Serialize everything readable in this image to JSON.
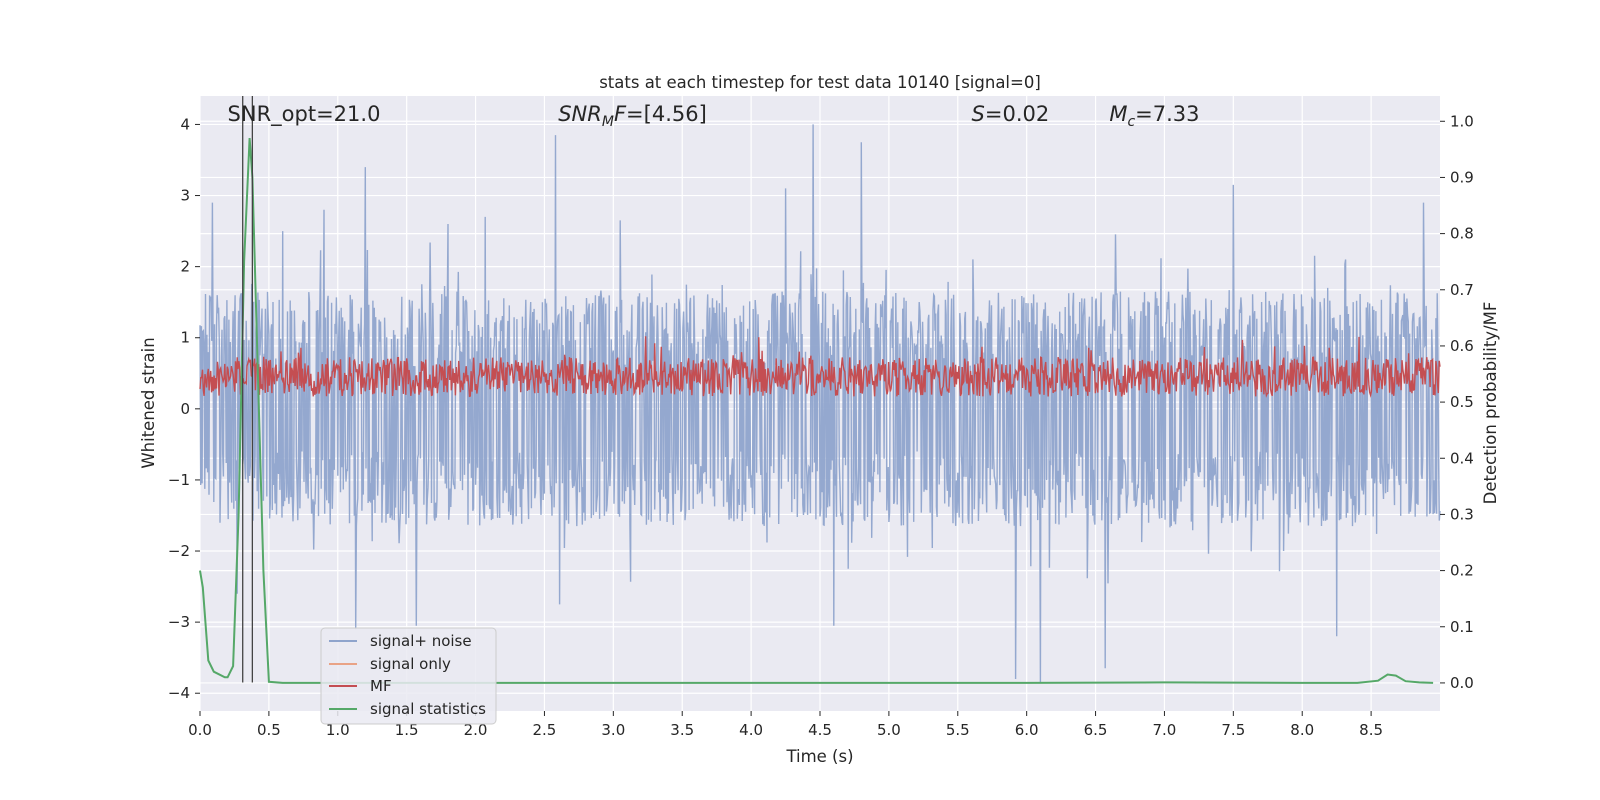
{
  "chart_data": {
    "type": "line",
    "title": "stats at each timestep for test data 10140 [signal=0]",
    "xlabel": "Time (s)",
    "ylabel": "Whitened strain",
    "ylabel_right": "Detection probability/MF",
    "xlim": [
      0.0,
      9.0
    ],
    "ylim": [
      -4.25,
      4.4
    ],
    "ylim_right": [
      -0.05,
      1.045
    ],
    "x_ticks": [
      0.0,
      0.5,
      1.0,
      1.5,
      2.0,
      2.5,
      3.0,
      3.5,
      4.0,
      4.5,
      5.0,
      5.5,
      6.0,
      6.5,
      7.0,
      7.5,
      8.0,
      8.5
    ],
    "x_tick_labels": [
      "0.0",
      "0.5",
      "1.0",
      "1.5",
      "2.0",
      "2.5",
      "3.0",
      "3.5",
      "4.0",
      "4.5",
      "5.0",
      "5.5",
      "6.0",
      "6.5",
      "7.0",
      "7.5",
      "8.0",
      "8.5"
    ],
    "y_ticks": [
      4,
      3,
      2,
      1,
      0,
      -1,
      -2,
      -3,
      -4
    ],
    "y_tick_labels": [
      "4",
      "3",
      "2",
      "1",
      "0",
      "−1",
      "−2",
      "−3",
      "−4"
    ],
    "y_right_ticks": [
      1.0,
      0.9,
      0.8,
      0.7,
      0.6,
      0.5,
      0.4,
      0.3,
      0.2,
      0.1,
      0.0
    ],
    "y_right_tick_labels": [
      "1.0",
      "0.9",
      "0.8",
      "0.7",
      "0.6",
      "0.5",
      "0.4",
      "0.3",
      "0.2",
      "0.1",
      "0.0"
    ],
    "grid": true,
    "annotations": [
      {
        "text": "SNR_opt=21.0",
        "x": 0.2,
        "y": 4.05
      },
      {
        "text": "=[4.56]",
        "x": 2.6,
        "y": 4.05,
        "math_base": "SNR",
        "math_sub": "M",
        "math_tail": "F"
      },
      {
        "text": "=0.02",
        "x": 5.6,
        "y": 4.05,
        "math_base": "S"
      },
      {
        "text": "=7.33",
        "x": 6.6,
        "y": 4.05,
        "math_base": "M",
        "math_sub": "c"
      }
    ],
    "vlines": [
      {
        "x": 0.31,
        "color": "#444444"
      },
      {
        "x": 0.38,
        "color": "#444444"
      }
    ],
    "series": [
      {
        "name": "signal+ noise",
        "axis": "left",
        "color": "#8fa4cc",
        "style": "dense noise, mostly within [-1.5, 1.6] with spikes",
        "spikes": [
          {
            "x": 0.09,
            "y": 2.9
          },
          {
            "x": 0.27,
            "y": -2.6
          },
          {
            "x": 0.6,
            "y": 2.5
          },
          {
            "x": 0.9,
            "y": 2.8
          },
          {
            "x": 1.2,
            "y": 3.4
          },
          {
            "x": 1.13,
            "y": -3.1
          },
          {
            "x": 1.57,
            "y": -3.05
          },
          {
            "x": 1.8,
            "y": 2.6
          },
          {
            "x": 2.07,
            "y": 2.7
          },
          {
            "x": 2.58,
            "y": 3.85
          },
          {
            "x": 2.61,
            "y": -2.75
          },
          {
            "x": 3.05,
            "y": 2.65
          },
          {
            "x": 4.25,
            "y": 3.1
          },
          {
            "x": 4.45,
            "y": 4.0
          },
          {
            "x": 4.6,
            "y": -3.05
          },
          {
            "x": 4.8,
            "y": 3.75
          },
          {
            "x": 5.92,
            "y": -3.8
          },
          {
            "x": 6.1,
            "y": -3.85
          },
          {
            "x": 6.57,
            "y": -3.65
          },
          {
            "x": 7.5,
            "y": 3.15
          },
          {
            "x": 8.25,
            "y": -3.2
          },
          {
            "x": 8.88,
            "y": 2.9
          }
        ]
      },
      {
        "name": "signal only",
        "axis": "left",
        "color": "#e9a386",
        "values": []
      },
      {
        "name": "MF",
        "axis": "right",
        "color": "#c44e52",
        "style": "noisy band, roughly 0.50 to 0.60, peaks near 0.64",
        "band": [
          0.5,
          0.6
        ]
      },
      {
        "name": "signal statistics",
        "axis": "right",
        "color": "#55a868",
        "x": [
          0.0,
          0.02,
          0.06,
          0.1,
          0.18,
          0.2,
          0.24,
          0.28,
          0.32,
          0.36,
          0.38,
          0.42,
          0.46,
          0.5,
          0.6,
          1.0,
          2.0,
          3.0,
          4.0,
          5.0,
          6.0,
          7.0,
          8.0,
          8.4,
          8.55,
          8.62,
          8.68,
          8.75,
          8.85,
          8.95
        ],
        "values": [
          0.2,
          0.17,
          0.04,
          0.02,
          0.01,
          0.01,
          0.03,
          0.3,
          0.75,
          0.97,
          0.9,
          0.55,
          0.2,
          0.002,
          0.0,
          0.0,
          0.0,
          0.0,
          0.0,
          0.0,
          0.0,
          0.001,
          0.0,
          0.0,
          0.004,
          0.015,
          0.013,
          0.003,
          0.001,
          0.0
        ]
      }
    ],
    "legend": {
      "placement": "lower-left",
      "entries": [
        {
          "label": "signal+ noise",
          "color": "#8fa4cc"
        },
        {
          "label": "signal only",
          "color": "#e9a386"
        },
        {
          "label": "MF",
          "color": "#c44e52"
        },
        {
          "label": "signal statistics",
          "color": "#55a868"
        }
      ]
    }
  }
}
